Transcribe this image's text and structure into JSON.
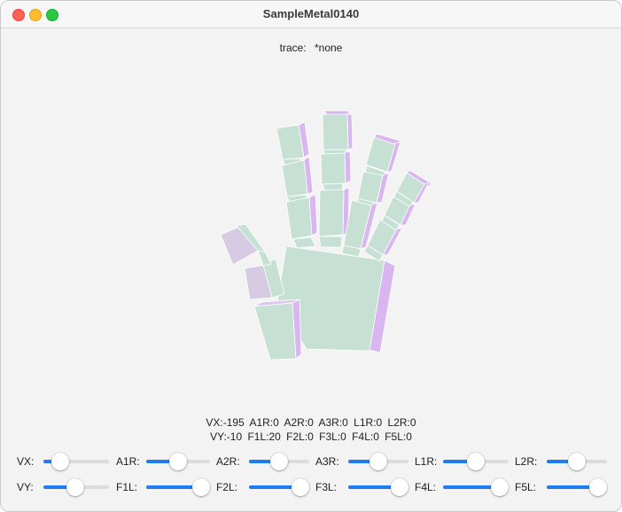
{
  "window": {
    "title": "SampleMetal0140"
  },
  "trace": {
    "label": "trace:",
    "value": "*none"
  },
  "readout": {
    "line1": "VX:-195  A1R:0  A2R:0  A3R:0  L1R:0  L2R:0",
    "line2": "VY:-10  F1L:20  F2L:0  F3L:0  F4L:0  F5L:0"
  },
  "sliders": [
    {
      "label": "VX:",
      "fraction": 0.25
    },
    {
      "label": "A1R:",
      "fraction": 0.5
    },
    {
      "label": "A2R:",
      "fraction": 0.5
    },
    {
      "label": "A3R:",
      "fraction": 0.5
    },
    {
      "label": "L1R:",
      "fraction": 0.5
    },
    {
      "label": "L2R:",
      "fraction": 0.5
    },
    {
      "label": "VY:",
      "fraction": 0.48
    },
    {
      "label": "F1L:",
      "fraction": 0.9
    },
    {
      "label": "F2L:",
      "fraction": 1.0
    },
    {
      "label": "F3L:",
      "fraction": 1.0
    },
    {
      "label": "F4L:",
      "fraction": 1.0
    },
    {
      "label": "F5L:",
      "fraction": 1.0
    }
  ],
  "colors": {
    "accent": "#1f7cf6",
    "hand_face": "#c6e0d4",
    "hand_side": "#d9b6ef",
    "thumb_face": "#d6cbe3"
  }
}
